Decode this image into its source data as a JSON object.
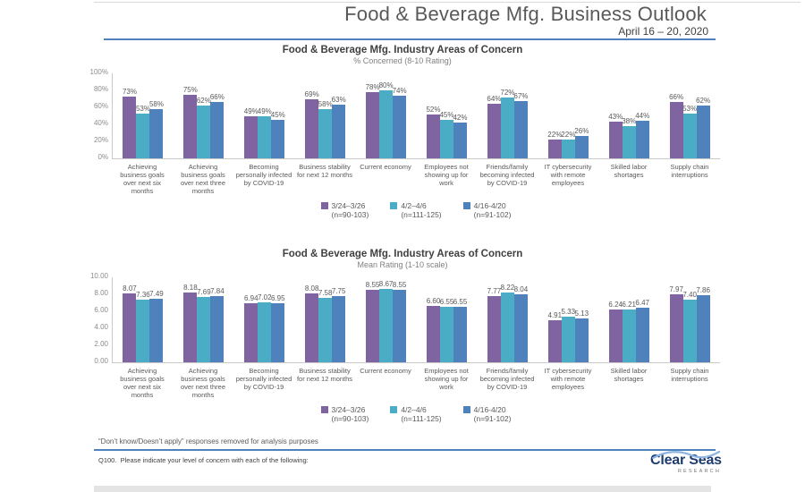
{
  "header": {
    "title": "Food & Beverage Mfg. Business Outlook",
    "date_range": "April 16 – 20, 2020"
  },
  "legend": {
    "entries": [
      {
        "label": "3/24–3/26",
        "n": "(n=90-103)",
        "color": "#8064A2"
      },
      {
        "label": "4/2–4/6",
        "n": "(n=111-125)",
        "color": "#4BACC6"
      },
      {
        "label": "4/16-4/20",
        "n": "(n=91-102)",
        "color": "#4F81BD"
      }
    ]
  },
  "chart_data": [
    {
      "type": "bar",
      "title": "Food & Beverage Mfg. Industry Areas of Concern",
      "subtitle": "% Concerned (8-10 Rating)",
      "categories": [
        "Achieving business goals over next six months",
        "Achieving business goals over next three months",
        "Becoming personally infected by COVID-19",
        "Business stability for next 12 months",
        "Current economy",
        "Employees not showing up for work",
        "Friends/family becoming infected by COVID-19",
        "IT cybersecurity with remote employees",
        "Skilled labor shortages",
        "Supply chain interruptions"
      ],
      "series": [
        {
          "name": "3/24–3/26 (n=90-103)",
          "color": "#8064A2",
          "values": [
            73,
            75,
            49,
            69,
            78,
            52,
            64,
            22,
            43,
            66
          ]
        },
        {
          "name": "4/2–4/6 (n=111-125)",
          "color": "#4BACC6",
          "values": [
            53,
            62,
            49,
            58,
            80,
            45,
            72,
            22,
            38,
            53
          ]
        },
        {
          "name": "4/16-4/20 (n=91-102)",
          "color": "#4F81BD",
          "values": [
            58,
            66,
            45,
            63,
            74,
            42,
            67,
            26,
            44,
            62
          ]
        }
      ],
      "ylim": [
        0,
        100
      ],
      "yticks": [
        "0%",
        "20%",
        "40%",
        "60%",
        "80%",
        "100%"
      ],
      "value_format": "percent",
      "grid": false,
      "legend_position": "bottom"
    },
    {
      "type": "bar",
      "title": "Food & Beverage Mfg. Industry Areas of Concern",
      "subtitle": "Mean Rating (1-10 scale)",
      "categories": [
        "Achieving business goals over next six months",
        "Achieving business goals over next three months",
        "Becoming personally infected by COVID-19",
        "Business stability for next 12 months",
        "Current economy",
        "Employees not showing up for work",
        "Friends/family becoming infected by COVID-19",
        "IT cybersecurity with remote employees",
        "Skilled labor shortages",
        "Supply chain interruptions"
      ],
      "series": [
        {
          "name": "3/24–3/26 (n=90-103)",
          "color": "#8064A2",
          "values": [
            8.07,
            8.18,
            6.94,
            8.08,
            8.55,
            6.6,
            7.77,
            4.91,
            6.24,
            7.97
          ]
        },
        {
          "name": "4/2–4/6 (n=111-125)",
          "color": "#4BACC6",
          "values": [
            7.36,
            7.69,
            7.02,
            7.58,
            8.67,
            6.55,
            8.22,
            5.33,
            6.21,
            7.4
          ]
        },
        {
          "name": "4/16-4/20 (n=91-102)",
          "color": "#4F81BD",
          "values": [
            7.49,
            7.84,
            6.95,
            7.75,
            8.55,
            6.55,
            8.04,
            5.13,
            6.47,
            7.86
          ]
        }
      ],
      "ylim": [
        0,
        10
      ],
      "yticks": [
        "0.00",
        "2.00",
        "4.00",
        "6.00",
        "8.00",
        "10.00"
      ],
      "value_format": "2dp",
      "grid": false,
      "legend_position": "bottom"
    }
  ],
  "footnotes": {
    "note": "“Don’t know/Doesn’t apply” responses removed for analysis purposes",
    "question": "Q100.  Please indicate your level of concern with each of the following:"
  },
  "logo": {
    "name": "Clear Seas",
    "sub": "RESEARCH"
  }
}
